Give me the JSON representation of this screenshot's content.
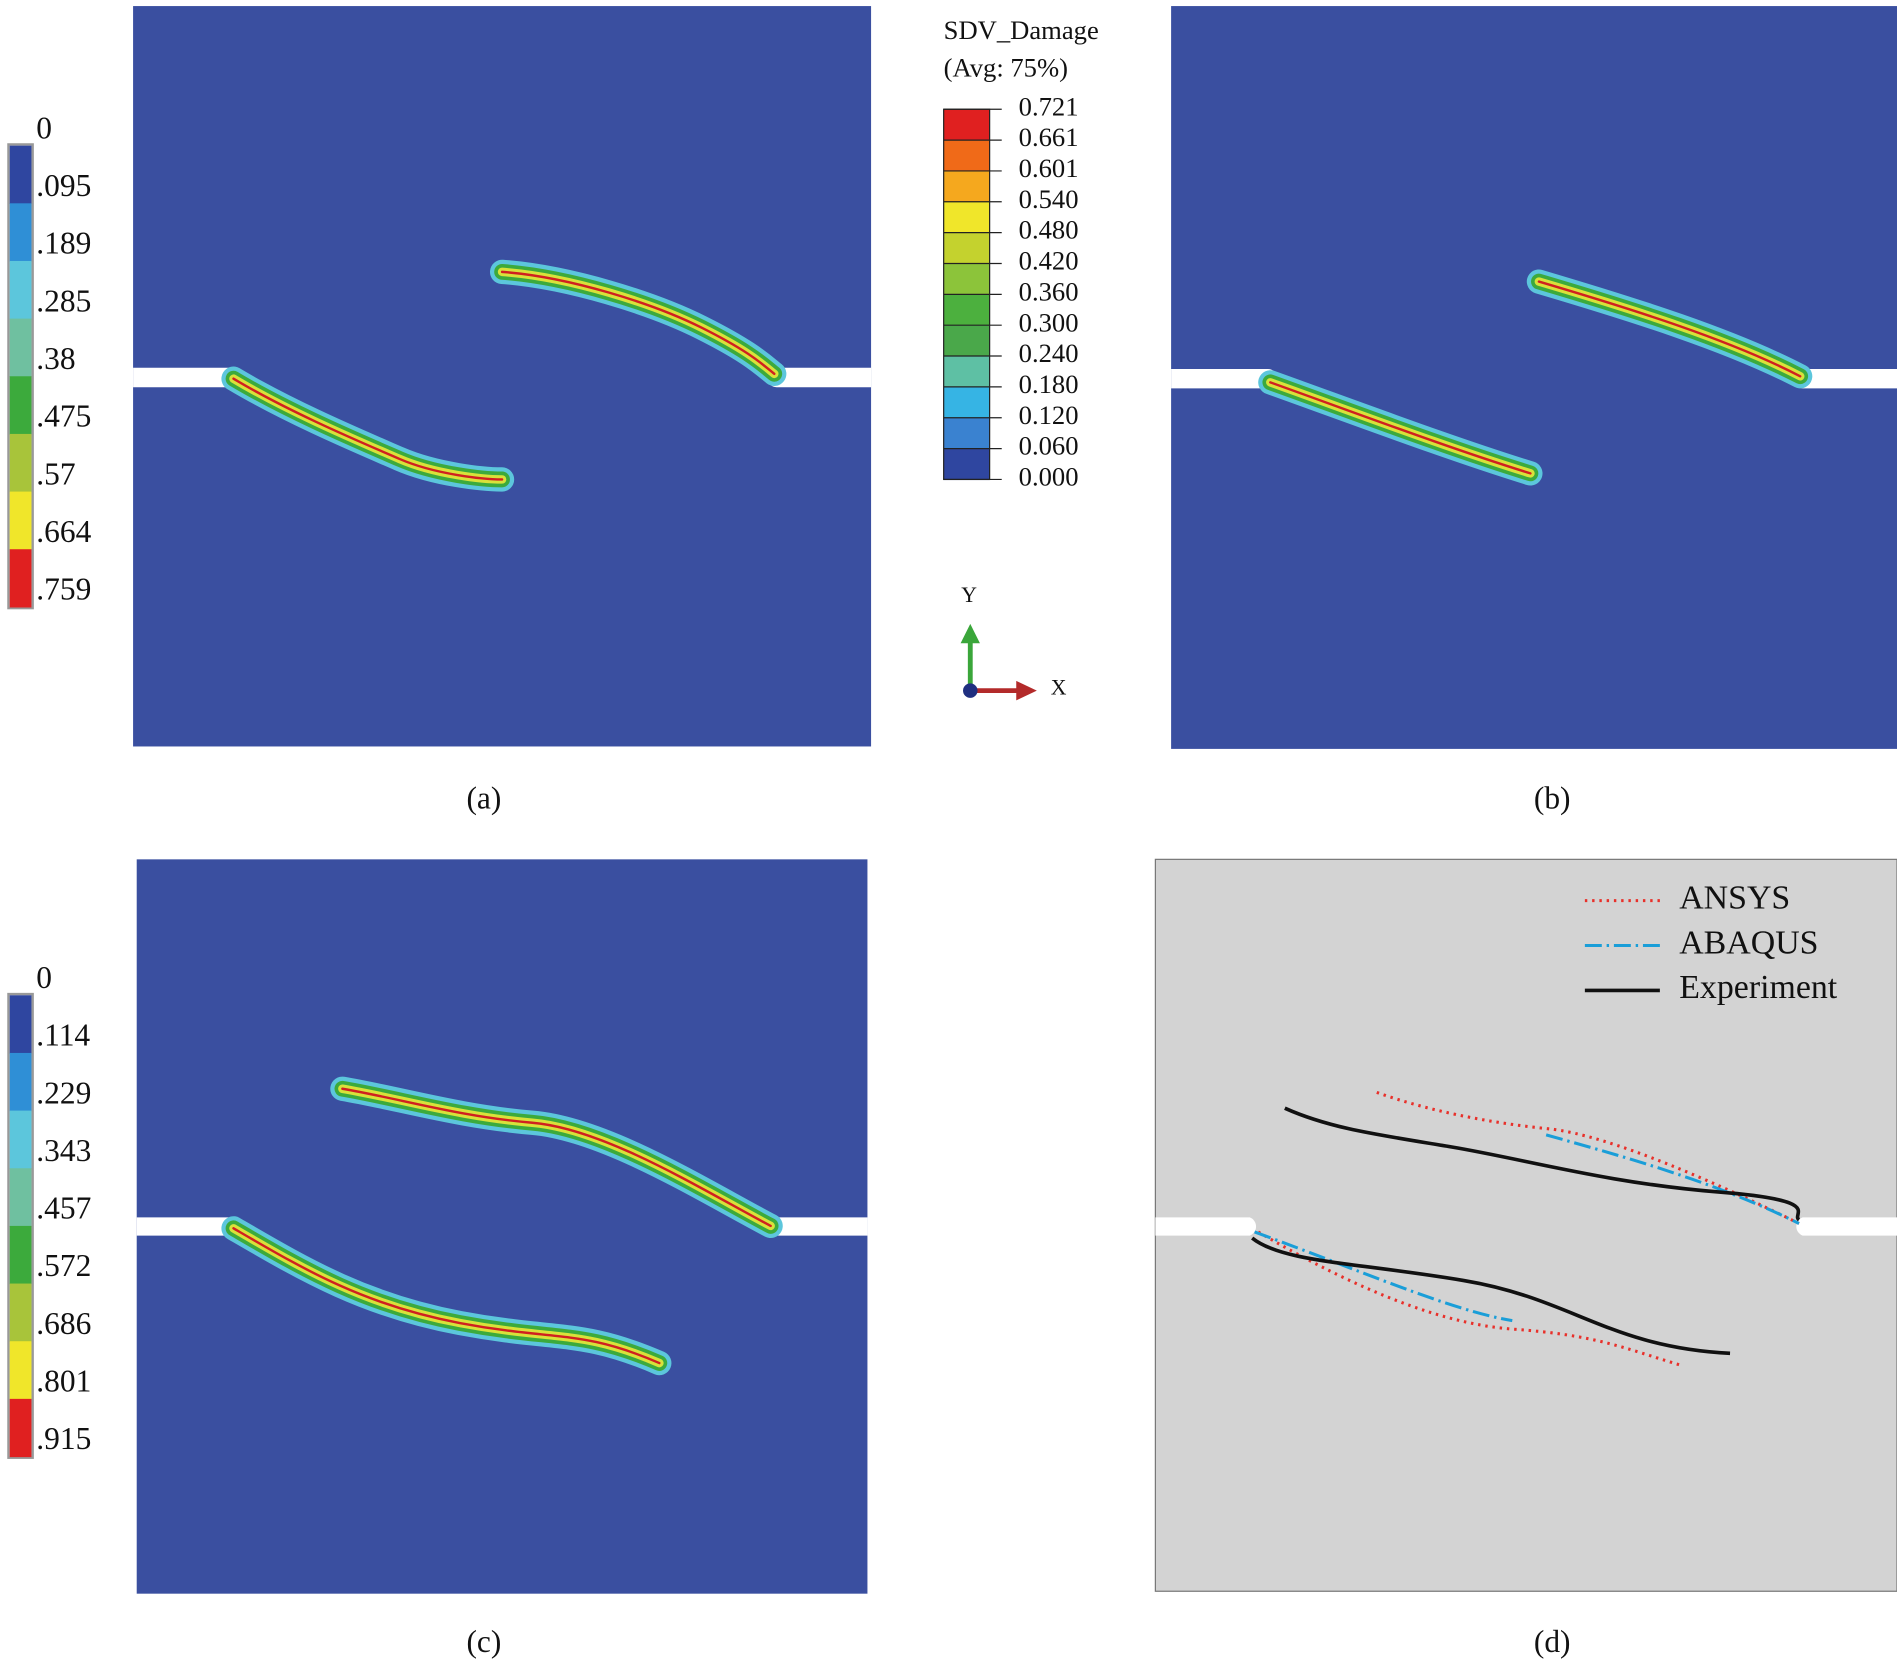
{
  "panels": [
    {
      "label": "(a)",
      "colorbar": {
        "labels": [
          "0",
          ".095",
          ".189",
          ".285",
          ".38",
          ".475",
          ".57",
          ".664",
          ".759"
        ]
      }
    },
    {
      "label": "(b)"
    },
    {
      "label": "(c)",
      "colorbar": {
        "labels": [
          "0",
          ".114",
          ".229",
          ".343",
          ".457",
          ".572",
          ".686",
          ".801",
          ".915"
        ]
      }
    },
    {
      "label": "(d)",
      "legend": [
        {
          "name": "ANSYS",
          "color": "#e8302a"
        },
        {
          "name": "ABAQUS",
          "color": "#1a9ed8"
        },
        {
          "name": "Experiment",
          "color": "#111111"
        }
      ]
    }
  ],
  "center_colorbar": {
    "title": "SDV_Damage",
    "subtitle": "(Avg: 75%)",
    "labels": [
      "0.721",
      "0.661",
      "0.601",
      "0.540",
      "0.480",
      "0.420",
      "0.360",
      "0.300",
      "0.240",
      "0.180",
      "0.120",
      "0.060",
      "0.000"
    ]
  },
  "axes": {
    "y": "Y",
    "x": "X"
  }
}
